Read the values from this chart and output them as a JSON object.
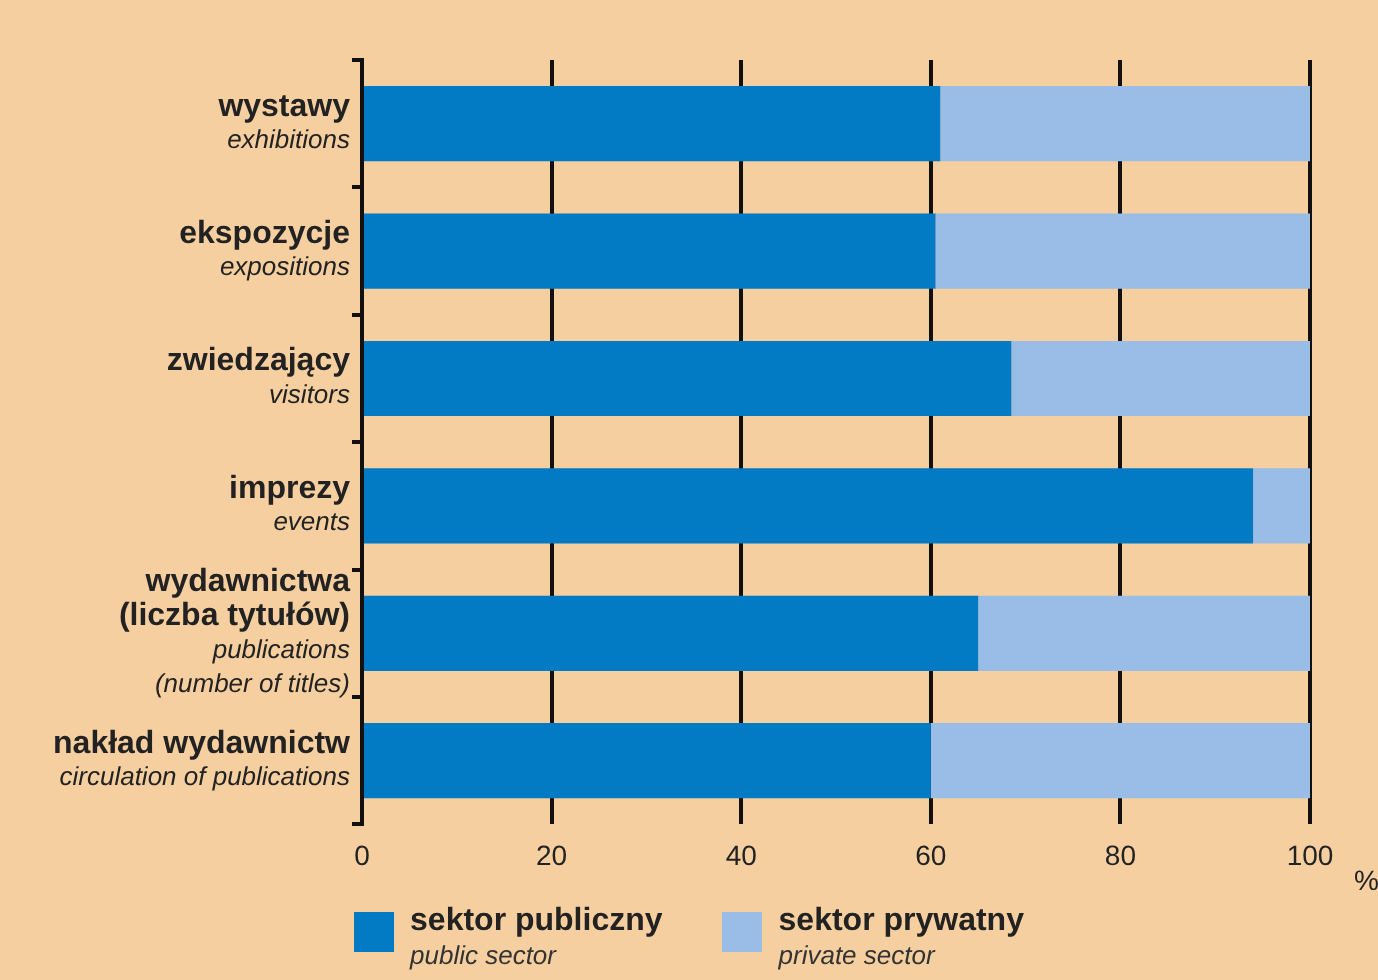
{
  "chart_data": {
    "type": "bar",
    "orientation": "horizontal",
    "stacked": true,
    "categories": [
      "wystawy\nexhibitions",
      "ekspozycje\nexpositions",
      "zwiedzający\nvisitors",
      "imprezy\nevents",
      "wydawnictwa\n(liczba tytułów)\npublications\n(number of titles)",
      "nakład wydawnictw\ncirculation of publications"
    ],
    "series": [
      {
        "name": "sektor publiczny\npublic sector",
        "color": "#037bc4",
        "values": [
          61,
          60.5,
          68.5,
          94,
          65,
          60
        ]
      },
      {
        "name": "sektor prywatny\nprivate sector",
        "color": "#99bde6",
        "values": [
          39,
          39.5,
          31.5,
          6,
          35,
          40
        ]
      }
    ],
    "xlabel": "%",
    "xlim": [
      0,
      100
    ],
    "xticks": [
      0,
      20,
      40,
      60,
      80,
      100
    ],
    "grid": "x",
    "legend": "bottom"
  }
}
